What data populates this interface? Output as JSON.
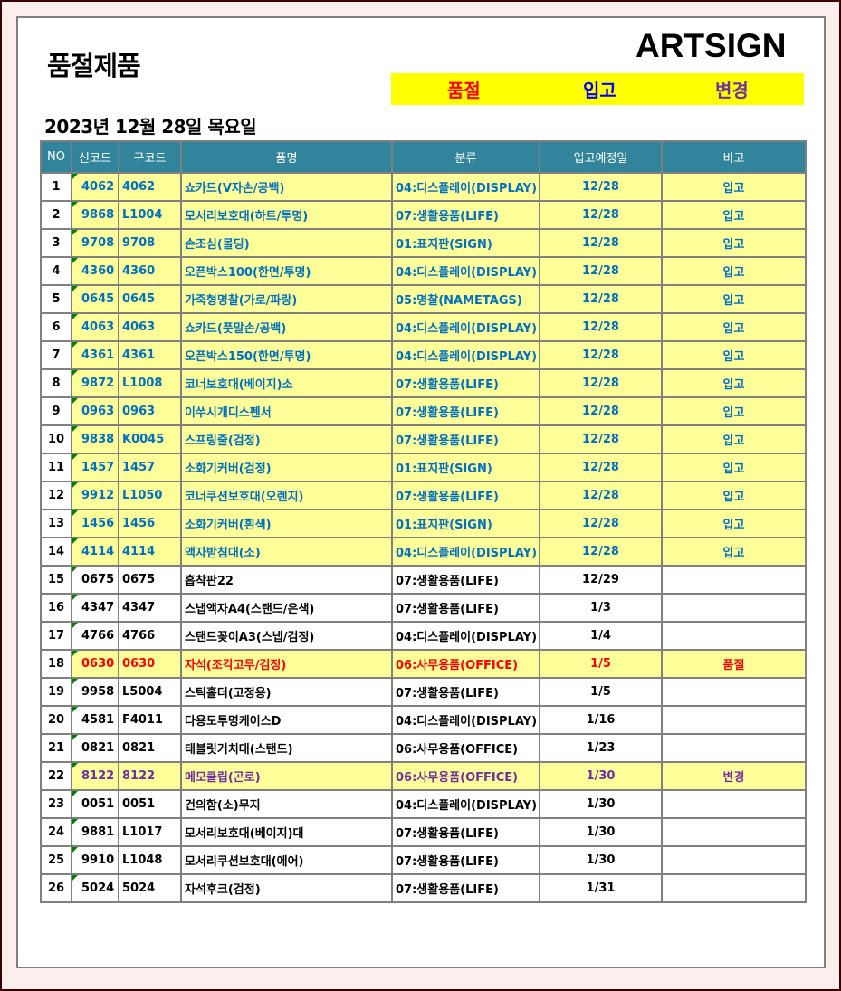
{
  "title": "품절제품",
  "logo": "ARTSIGN",
  "legend": {
    "soldout": "품절",
    "incoming": "입고",
    "changed": "변경"
  },
  "colors": {
    "soldout": "#ff0000",
    "incoming": "#0000ff",
    "changed": "#7030a0",
    "header_bg": "#31849b",
    "highlight_row": "#ffff99",
    "legend_bg": "#ffff00"
  },
  "date": "2023년 12월 28일 목요일",
  "columns": [
    "NO",
    "신코드",
    "구코드",
    "품명",
    "분류",
    "입고예정일",
    "비고"
  ],
  "rows": [
    {
      "no": "1",
      "new": "4062",
      "old": "4062",
      "name": "쇼카드(V자손/공백)",
      "cat": "04:디스플레이(DISPLAY)",
      "eta": "12/28",
      "note": "입고"
    },
    {
      "no": "2",
      "new": "9868",
      "old": "L1004",
      "name": "모서리보호대(하트/투명)",
      "cat": "07:생활용품(LIFE)",
      "eta": "12/28",
      "note": "입고"
    },
    {
      "no": "3",
      "new": "9708",
      "old": "9708",
      "name": "손조심(몰딩)",
      "cat": "01:표지판(SIGN)",
      "eta": "12/28",
      "note": "입고"
    },
    {
      "no": "4",
      "new": "4360",
      "old": "4360",
      "name": "오픈박스100(한면/투명)",
      "cat": "04:디스플레이(DISPLAY)",
      "eta": "12/28",
      "note": "입고"
    },
    {
      "no": "5",
      "new": "0645",
      "old": "0645",
      "name": "가죽형명찰(가로/파랑)",
      "cat": "05:명찰(NAMETAGS)",
      "eta": "12/28",
      "note": "입고"
    },
    {
      "no": "6",
      "new": "4063",
      "old": "4063",
      "name": "쇼카드(풋말손/공백)",
      "cat": "04:디스플레이(DISPLAY)",
      "eta": "12/28",
      "note": "입고"
    },
    {
      "no": "7",
      "new": "4361",
      "old": "4361",
      "name": "오픈박스150(한면/투명)",
      "cat": "04:디스플레이(DISPLAY)",
      "eta": "12/28",
      "note": "입고"
    },
    {
      "no": "8",
      "new": "9872",
      "old": "L1008",
      "name": "코너보호대(베이지)소",
      "cat": "07:생활용품(LIFE)",
      "eta": "12/28",
      "note": "입고"
    },
    {
      "no": "9",
      "new": "0963",
      "old": "0963",
      "name": "이쑤시개디스펜서",
      "cat": "07:생활용품(LIFE)",
      "eta": "12/28",
      "note": "입고"
    },
    {
      "no": "10",
      "new": "9838",
      "old": "K0045",
      "name": "스프링줄(검정)",
      "cat": "07:생활용품(LIFE)",
      "eta": "12/28",
      "note": "입고"
    },
    {
      "no": "11",
      "new": "1457",
      "old": "1457",
      "name": "소화기커버(검정)",
      "cat": "01:표지판(SIGN)",
      "eta": "12/28",
      "note": "입고"
    },
    {
      "no": "12",
      "new": "9912",
      "old": "L1050",
      "name": "코너쿠션보호대(오렌지)",
      "cat": "07:생활용품(LIFE)",
      "eta": "12/28",
      "note": "입고"
    },
    {
      "no": "13",
      "new": "1456",
      "old": "1456",
      "name": "소화기커버(흰색)",
      "cat": "01:표지판(SIGN)",
      "eta": "12/28",
      "note": "입고"
    },
    {
      "no": "14",
      "new": "4114",
      "old": "4114",
      "name": "액자받침대(소)",
      "cat": "04:디스플레이(DISPLAY)",
      "eta": "12/28",
      "note": "입고"
    },
    {
      "no": "15",
      "new": "0675",
      "old": "0675",
      "name": "흡착판22",
      "cat": "07:생활용품(LIFE)",
      "eta": "12/29",
      "note": ""
    },
    {
      "no": "16",
      "new": "4347",
      "old": "4347",
      "name": "스냅액자A4(스탠드/은색)",
      "cat": "07:생활용품(LIFE)",
      "eta": "1/3",
      "note": ""
    },
    {
      "no": "17",
      "new": "4766",
      "old": "4766",
      "name": "스탠드꽂이A3(스냅/검정)",
      "cat": "04:디스플레이(DISPLAY)",
      "eta": "1/4",
      "note": ""
    },
    {
      "no": "18",
      "new": "0630",
      "old": "0630",
      "name": "자석(조각고무/검정)",
      "cat": "06:사무용품(OFFICE)",
      "eta": "1/5",
      "note": "품절"
    },
    {
      "no": "19",
      "new": "9958",
      "old": "L5004",
      "name": "스틱홀더(고정용)",
      "cat": "07:생활용품(LIFE)",
      "eta": "1/5",
      "note": ""
    },
    {
      "no": "20",
      "new": "4581",
      "old": "F4011",
      "name": "다용도투명케이스D",
      "cat": "04:디스플레이(DISPLAY)",
      "eta": "1/16",
      "note": ""
    },
    {
      "no": "21",
      "new": "0821",
      "old": "0821",
      "name": "태블릿거치대(스탠드)",
      "cat": "06:사무용품(OFFICE)",
      "eta": "1/23",
      "note": ""
    },
    {
      "no": "22",
      "new": "8122",
      "old": "8122",
      "name": "메모클립(곤로)",
      "cat": "06:사무용품(OFFICE)",
      "eta": "1/30",
      "note": "변경"
    },
    {
      "no": "23",
      "new": "0051",
      "old": "0051",
      "name": "건의함(소)무지",
      "cat": "04:디스플레이(DISPLAY)",
      "eta": "1/30",
      "note": ""
    },
    {
      "no": "24",
      "new": "9881",
      "old": "L1017",
      "name": "모서리보호대(베이지)대",
      "cat": "07:생활용품(LIFE)",
      "eta": "1/30",
      "note": ""
    },
    {
      "no": "25",
      "new": "9910",
      "old": "L1048",
      "name": "모서리쿠션보호대(에어)",
      "cat": "07:생활용품(LIFE)",
      "eta": "1/30",
      "note": ""
    },
    {
      "no": "26",
      "new": "5024",
      "old": "5024",
      "name": "자석후크(검정)",
      "cat": "07:생활용품(LIFE)",
      "eta": "1/31",
      "note": ""
    }
  ]
}
